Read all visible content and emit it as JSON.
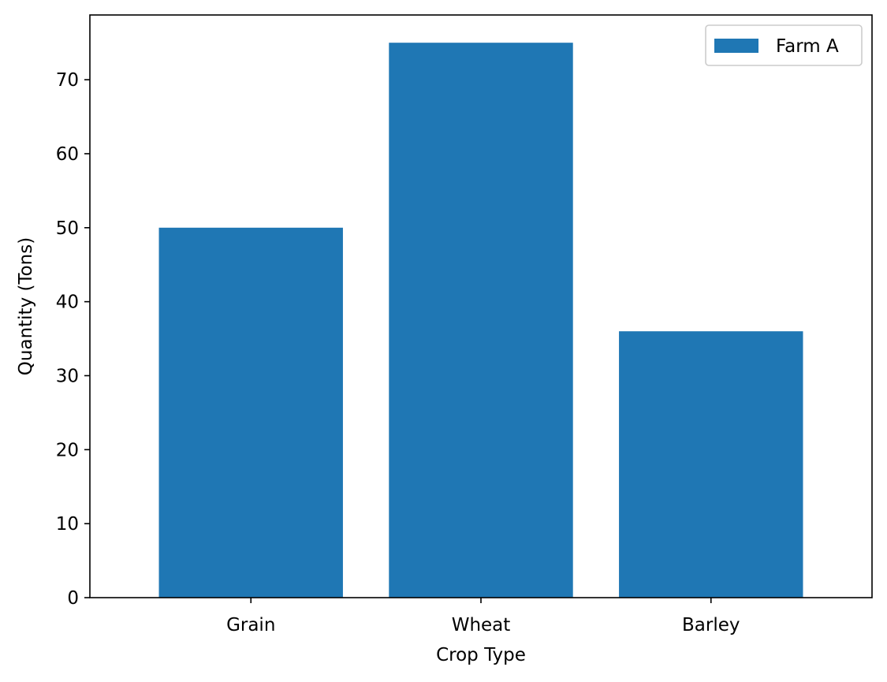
{
  "chart_data": {
    "type": "bar",
    "title": "",
    "xlabel": "Crop Type",
    "ylabel": "Quantity (Tons)",
    "categories": [
      "Grain",
      "Wheat",
      "Barley"
    ],
    "series": [
      {
        "name": "Farm A",
        "values": [
          50,
          75,
          36
        ],
        "color": "#1f77b4"
      }
    ],
    "ylim": [
      0,
      78.75
    ],
    "yticks": [
      0,
      10,
      20,
      30,
      40,
      50,
      60,
      70
    ],
    "grid": false,
    "legend_position": "top-right"
  }
}
